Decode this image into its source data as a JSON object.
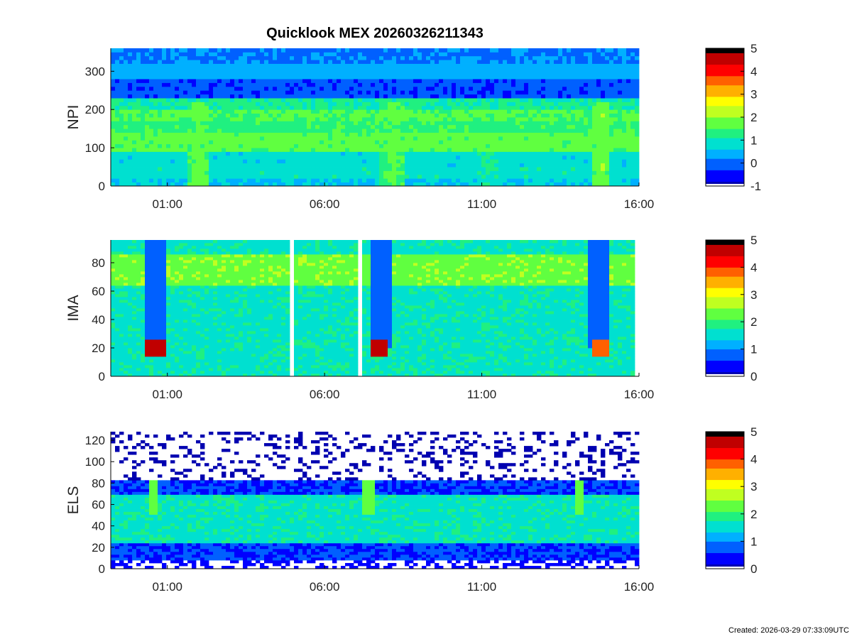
{
  "figure": {
    "title": "Quicklook MEX 20260326211343",
    "footer": "Created: 2026-03-29 07:33:09UTC"
  },
  "colors": {
    "colormap": [
      "#0000b0",
      "#0000ff",
      "#0060ff",
      "#00b0ff",
      "#00e0d0",
      "#20f080",
      "#60ff40",
      "#c0ff20",
      "#ffff00",
      "#ffb000",
      "#ff6000",
      "#ff0000",
      "#c00000",
      "#000000"
    ],
    "missing": "#ffffff"
  },
  "chart_data": [
    {
      "type": "heatmap",
      "ylabel": "NPI",
      "x_tick_labels": [
        "01:00",
        "06:00",
        "11:00",
        "16:00"
      ],
      "x_ticks_hours": [
        1,
        6,
        11,
        16
      ],
      "x_range_hours": [
        -0.8,
        16.0
      ],
      "ylim": [
        0,
        360
      ],
      "y_ticks": [
        0,
        100,
        200,
        300
      ],
      "colorbar": {
        "ticks": [
          -1,
          0,
          1,
          2,
          3,
          4,
          5
        ],
        "range": [
          -1,
          5
        ]
      },
      "row_levels": [
        {
          "y": [
            0,
            20
          ],
          "level": 0.6
        },
        {
          "y": [
            20,
            50
          ],
          "level": 0.9
        },
        {
          "y": [
            50,
            90
          ],
          "level": 0.8
        },
        {
          "y": [
            90,
            145
          ],
          "level": 1.7
        },
        {
          "y": [
            145,
            175
          ],
          "level": 1.4
        },
        {
          "y": [
            175,
            200
          ],
          "level": 1.6
        },
        {
          "y": [
            200,
            230
          ],
          "level": 1.1
        },
        {
          "y": [
            230,
            285
          ],
          "level": -0.2
        },
        {
          "y": [
            285,
            325
          ],
          "level": 0.4
        },
        {
          "y": [
            325,
            360
          ],
          "level": 0.1
        }
      ],
      "events": [
        {
          "t": 2.0,
          "width": 0.35,
          "level": 1.8
        },
        {
          "t": 8.2,
          "width": 0.4,
          "level": 1.7
        },
        {
          "t": 11.2,
          "width": 0.3,
          "level": 1.2
        },
        {
          "t": 14.8,
          "width": 0.3,
          "level": 1.9
        }
      ]
    },
    {
      "type": "heatmap",
      "ylabel": "IMA",
      "x_tick_labels": [
        "01:00",
        "06:00",
        "11:00",
        "16:00"
      ],
      "x_ticks_hours": [
        1,
        6,
        11,
        16
      ],
      "x_range_hours": [
        -0.8,
        16.0
      ],
      "ylim": [
        0,
        96
      ],
      "y_ticks": [
        0,
        20,
        40,
        60,
        80
      ],
      "colorbar": {
        "ticks": [
          0,
          1,
          2,
          3,
          4,
          5
        ],
        "range": [
          0,
          5
        ]
      },
      "background_level": 1.6,
      "band": {
        "y": [
          65,
          85
        ],
        "level": 2.4
      },
      "data_gaps_hours": [
        [
          4.95,
          5.05
        ],
        [
          7.05,
          7.15
        ]
      ],
      "data_end_hour": 15.8,
      "hotspots": [
        {
          "t": 0.65,
          "y": 20,
          "level": 4.5
        },
        {
          "t": 7.75,
          "y": 20,
          "level": 4.6
        },
        {
          "t": 14.75,
          "y": 20,
          "level": 4.0
        }
      ]
    },
    {
      "type": "heatmap",
      "ylabel": "ELS",
      "x_tick_labels": [
        "01:00",
        "06:00",
        "11:00",
        "16:00"
      ],
      "x_ticks_hours": [
        1,
        6,
        11,
        16
      ],
      "x_range_hours": [
        -0.8,
        16.0
      ],
      "ylim": [
        0,
        128
      ],
      "y_ticks": [
        0,
        20,
        40,
        60,
        80,
        100,
        120
      ],
      "colorbar": {
        "ticks": [
          0,
          1,
          2,
          3,
          4,
          5
        ],
        "range": [
          0,
          5
        ]
      },
      "noise_above": 82,
      "core_band": {
        "y": [
          25,
          70
        ],
        "level": 1.6
      },
      "dips_hours": [
        0.6,
        7.4,
        14.1
      ]
    }
  ]
}
